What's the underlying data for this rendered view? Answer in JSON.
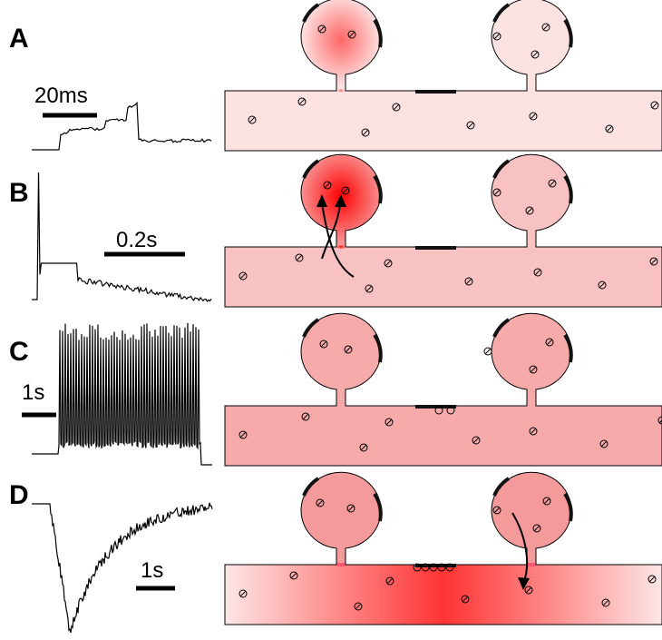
{
  "panels": [
    {
      "label": "A",
      "scale_label": "20ms"
    },
    {
      "label": "B",
      "scale_label": "0.2s"
    },
    {
      "label": "C",
      "scale_label": "1s"
    },
    {
      "label": "D",
      "scale_label": "1s"
    }
  ]
}
